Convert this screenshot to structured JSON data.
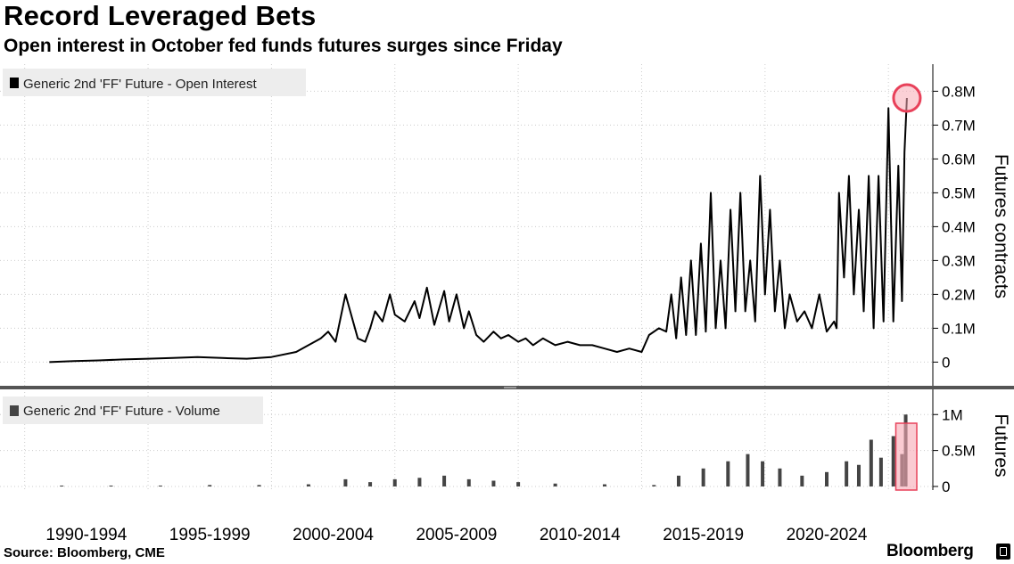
{
  "title": "Record Leveraged Bets",
  "subtitle": "Open interest in October fed funds futures surges since Friday",
  "source": "Source: Bloomberg, CME",
  "brand": "Bloomberg",
  "colors": {
    "line": "#000000",
    "volume": "#444444",
    "highlight_circle": "#e8415a",
    "highlight_fill": "#f7a9b4",
    "grid": "#cccccc"
  },
  "chart_data": [
    {
      "type": "line",
      "panel": "top",
      "legend": "Generic 2nd 'FF' Future - Open Interest",
      "ylabel": "Futures contracts",
      "ylim": [
        -0.07,
        0.88
      ],
      "yticks": [
        0,
        0.1,
        0.2,
        0.3,
        0.4,
        0.5,
        0.6,
        0.7,
        0.8
      ],
      "ytick_labels": [
        "0",
        "0.1M",
        "0.2M",
        "0.3M",
        "0.4M",
        "0.5M",
        "0.6M",
        "0.7M",
        "0.8M"
      ],
      "xlim": [
        1988,
        2025.8
      ],
      "annotation": {
        "type": "circle",
        "x": 2024.75,
        "y": 0.78
      },
      "series": [
        {
          "name": "Generic 2nd 'FF' Future - Open Interest",
          "x": [
            1990.0,
            1991.0,
            1992.0,
            1993.0,
            1994.0,
            1995.0,
            1996.0,
            1997.0,
            1998.0,
            1999.0,
            2000.0,
            2000.5,
            2001.0,
            2001.3,
            2001.6,
            2002.0,
            2002.5,
            2002.8,
            2003.0,
            2003.2,
            2003.5,
            2003.8,
            2004.0,
            2004.4,
            2004.8,
            2005.0,
            2005.3,
            2005.6,
            2006.0,
            2006.2,
            2006.5,
            2006.8,
            2007.0,
            2007.3,
            2007.6,
            2008.0,
            2008.3,
            2008.6,
            2009.0,
            2009.3,
            2009.6,
            2010.0,
            2010.5,
            2011.0,
            2011.5,
            2012.0,
            2012.5,
            2013.0,
            2013.5,
            2014.0,
            2014.3,
            2014.7,
            2015.0,
            2015.2,
            2015.4,
            2015.6,
            2015.8,
            2016.0,
            2016.2,
            2016.4,
            2016.6,
            2016.8,
            2017.0,
            2017.2,
            2017.4,
            2017.6,
            2017.8,
            2018.0,
            2018.2,
            2018.4,
            2018.6,
            2018.8,
            2019.0,
            2019.2,
            2019.4,
            2019.6,
            2019.8,
            2020.0,
            2020.3,
            2020.6,
            2020.9,
            2021.2,
            2021.5,
            2021.8,
            2021.9,
            2022.0,
            2022.2,
            2022.4,
            2022.6,
            2022.8,
            2023.0,
            2023.2,
            2023.4,
            2023.6,
            2023.8,
            2024.0,
            2024.2,
            2024.4,
            2024.55,
            2024.65,
            2024.75
          ],
          "values": [
            0.0,
            0.003,
            0.005,
            0.008,
            0.01,
            0.012,
            0.015,
            0.012,
            0.01,
            0.015,
            0.03,
            0.05,
            0.07,
            0.09,
            0.06,
            0.2,
            0.07,
            0.06,
            0.1,
            0.15,
            0.12,
            0.2,
            0.14,
            0.12,
            0.18,
            0.13,
            0.22,
            0.11,
            0.21,
            0.12,
            0.2,
            0.1,
            0.15,
            0.08,
            0.06,
            0.09,
            0.07,
            0.08,
            0.06,
            0.07,
            0.05,
            0.07,
            0.05,
            0.06,
            0.05,
            0.05,
            0.04,
            0.03,
            0.04,
            0.03,
            0.08,
            0.1,
            0.09,
            0.2,
            0.07,
            0.25,
            0.08,
            0.3,
            0.08,
            0.35,
            0.09,
            0.5,
            0.1,
            0.3,
            0.1,
            0.45,
            0.15,
            0.5,
            0.15,
            0.3,
            0.12,
            0.55,
            0.2,
            0.45,
            0.15,
            0.3,
            0.1,
            0.2,
            0.12,
            0.15,
            0.1,
            0.2,
            0.09,
            0.12,
            0.1,
            0.5,
            0.25,
            0.55,
            0.2,
            0.45,
            0.15,
            0.55,
            0.1,
            0.55,
            0.12,
            0.75,
            0.12,
            0.58,
            0.18,
            0.62,
            0.78
          ]
        }
      ]
    },
    {
      "type": "bar",
      "panel": "bottom",
      "legend": "Generic 2nd 'FF' Future - Volume",
      "ylabel": "Futures",
      "ylim": [
        -0.05,
        1.35
      ],
      "yticks": [
        0,
        0.5,
        1.0
      ],
      "ytick_labels": [
        "0",
        "0.5M",
        "1M"
      ],
      "xlim": [
        1988,
        2025.8
      ],
      "annotation": {
        "type": "shaded-rect",
        "x_start": 2024.3,
        "x_end": 2025.15
      },
      "series": [
        {
          "name": "Generic 2nd 'FF' Future - Volume",
          "x": [
            1990.5,
            1992.5,
            1994.5,
            1996.5,
            1998.5,
            2000.5,
            2002.0,
            2003.0,
            2004.0,
            2005.0,
            2006.0,
            2007.0,
            2008.0,
            2009.0,
            2010.5,
            2012.5,
            2014.5,
            2015.5,
            2016.5,
            2017.5,
            2018.3,
            2018.9,
            2019.6,
            2020.5,
            2021.5,
            2022.3,
            2022.8,
            2023.3,
            2023.7,
            2024.2,
            2024.55,
            2024.7
          ],
          "values": [
            0.0,
            0.005,
            0.01,
            0.02,
            0.02,
            0.03,
            0.1,
            0.06,
            0.1,
            0.12,
            0.15,
            0.1,
            0.08,
            0.06,
            0.04,
            0.03,
            0.02,
            0.15,
            0.25,
            0.35,
            0.45,
            0.35,
            0.25,
            0.15,
            0.2,
            0.35,
            0.3,
            0.65,
            0.4,
            0.7,
            0.45,
            1.0
          ]
        }
      ]
    }
  ],
  "x_axis": {
    "labels": [
      "1990-1994",
      "1995-1999",
      "2000-2004",
      "2005-2009",
      "2010-2014",
      "2015-2019",
      "2020-2024"
    ],
    "gridlines": [
      1989,
      1994,
      1999,
      2004,
      2009,
      2014,
      2019,
      2024
    ],
    "label_centers": [
      1991.5,
      1996.5,
      2001.5,
      2006.5,
      2011.5,
      2016.5,
      2021.5
    ]
  }
}
